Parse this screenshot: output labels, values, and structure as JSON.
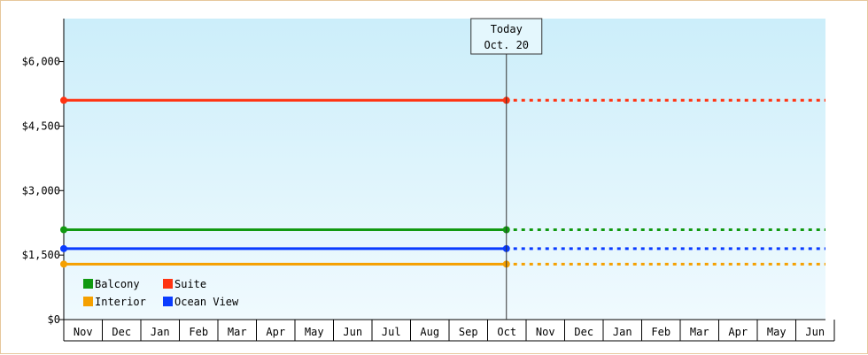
{
  "chart_data": {
    "type": "line",
    "categories": [
      "Nov",
      "Dec",
      "Jan",
      "Feb",
      "Mar",
      "Apr",
      "May",
      "Jun",
      "Jul",
      "Aug",
      "Sep",
      "Oct",
      "Nov",
      "Dec",
      "Jan",
      "Feb",
      "Mar",
      "Apr",
      "May",
      "Jun"
    ],
    "today_index": 11,
    "today_label": [
      "Today",
      "Oct. 20"
    ],
    "ylim": [
      0,
      7000
    ],
    "yticks": [
      {
        "value": 0,
        "label": "$0"
      },
      {
        "value": 1500,
        "label": "$1,500"
      },
      {
        "value": 3000,
        "label": "$3,000"
      },
      {
        "value": 4500,
        "label": "$4,500"
      },
      {
        "value": 6000,
        "label": "$6,000"
      }
    ],
    "series": [
      {
        "name": "Balcony",
        "color": "#119911",
        "value": 2090
      },
      {
        "name": "Suite",
        "color": "#ff3311",
        "value": 5100
      },
      {
        "name": "Interior",
        "color": "#f5a000",
        "value": 1290
      },
      {
        "name": "Ocean View",
        "color": "#0a3cff",
        "value": 1650
      }
    ],
    "legend_position": "bottom-left",
    "background_gradient": [
      "#cceefa",
      "#f0fafe"
    ]
  }
}
